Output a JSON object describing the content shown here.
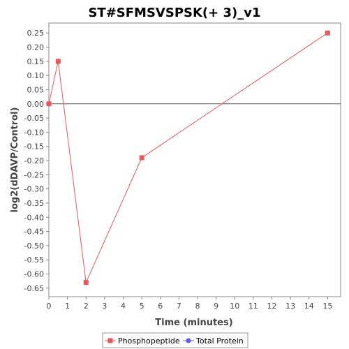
{
  "chart_data": {
    "type": "line",
    "title": "ST#SFMSVSPSK(+ 3)_v1",
    "xlabel": "Time (minutes)",
    "ylabel": "log2(dDAVP/Control)",
    "xlim": [
      0,
      15.7
    ],
    "ylim": [
      -0.68,
      0.285
    ],
    "x_ticks": [
      "0",
      "1",
      "2",
      "3",
      "4",
      "5",
      "6",
      "7",
      "8",
      "9",
      "10",
      "11",
      "12",
      "13",
      "14",
      "15"
    ],
    "y_ticks": [
      "0.25",
      "0.20",
      "0.15",
      "0.10",
      "0.05",
      "0.00",
      "-0.05",
      "-0.10",
      "-0.15",
      "-0.20",
      "-0.25",
      "-0.30",
      "-0.35",
      "-0.40",
      "-0.45",
      "-0.50",
      "-0.55",
      "-0.60",
      "-0.65"
    ],
    "zero_line": true,
    "grid": false,
    "legend_position": "bottom",
    "series": [
      {
        "name": "Phosphopeptide",
        "color": "#e8575a",
        "marker": "square",
        "points": [
          {
            "x": 0,
            "y": 0.0
          },
          {
            "x": 0.5,
            "y": 0.15
          },
          {
            "x": 2,
            "y": -0.63
          },
          {
            "x": 5,
            "y": -0.19
          },
          {
            "x": 15,
            "y": 0.25
          }
        ]
      },
      {
        "name": "Total Protein",
        "color": "#5b5bf0",
        "marker": "circle",
        "points": []
      }
    ]
  }
}
